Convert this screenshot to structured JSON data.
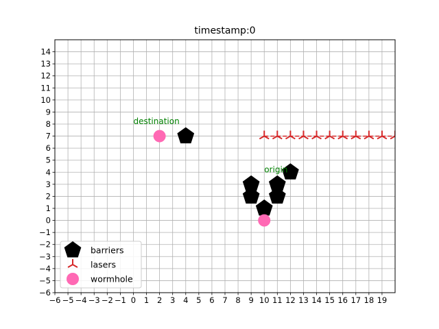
{
  "title": "timestamp:0",
  "chart_data": {
    "type": "scatter",
    "title": "timestamp:0",
    "xlim": [
      -6,
      20
    ],
    "ylim": [
      -6,
      15
    ],
    "grid": true,
    "xticks": [
      -6,
      -5,
      -4,
      -3,
      -2,
      -1,
      0,
      1,
      2,
      3,
      4,
      5,
      6,
      7,
      8,
      9,
      10,
      11,
      12,
      13,
      14,
      15,
      16,
      17,
      18,
      19
    ],
    "yticks": [
      -6,
      -5,
      -4,
      -3,
      -2,
      -1,
      0,
      1,
      2,
      3,
      4,
      5,
      6,
      7,
      8,
      9,
      10,
      11,
      12,
      13,
      14
    ],
    "legend_position": "lower-left",
    "series": [
      {
        "name": "barriers",
        "marker": "pentagon",
        "color": "#000000",
        "points": [
          [
            4,
            7
          ],
          [
            12,
            4
          ],
          [
            9,
            3
          ],
          [
            11,
            3
          ],
          [
            9,
            2
          ],
          [
            11,
            2
          ],
          [
            10,
            1
          ]
        ]
      },
      {
        "name": "lasers",
        "marker": "star",
        "color": "#d62728",
        "line": "dashed",
        "points": [
          [
            10,
            7
          ],
          [
            11,
            7
          ],
          [
            12,
            7
          ],
          [
            13,
            7
          ],
          [
            14,
            7
          ],
          [
            15,
            7
          ],
          [
            16,
            7
          ],
          [
            17,
            7
          ],
          [
            18,
            7
          ],
          [
            19,
            7
          ],
          [
            20,
            7
          ]
        ]
      },
      {
        "name": "wormhole",
        "marker": "circle",
        "color": "#ff69b4",
        "points": [
          [
            2,
            7
          ],
          [
            10,
            0
          ]
        ]
      }
    ],
    "annotations": [
      {
        "text": "destination",
        "x": 0,
        "y": 8,
        "color": "#008000"
      },
      {
        "text": "origin",
        "x": 10,
        "y": 4,
        "color": "#008000"
      }
    ]
  }
}
